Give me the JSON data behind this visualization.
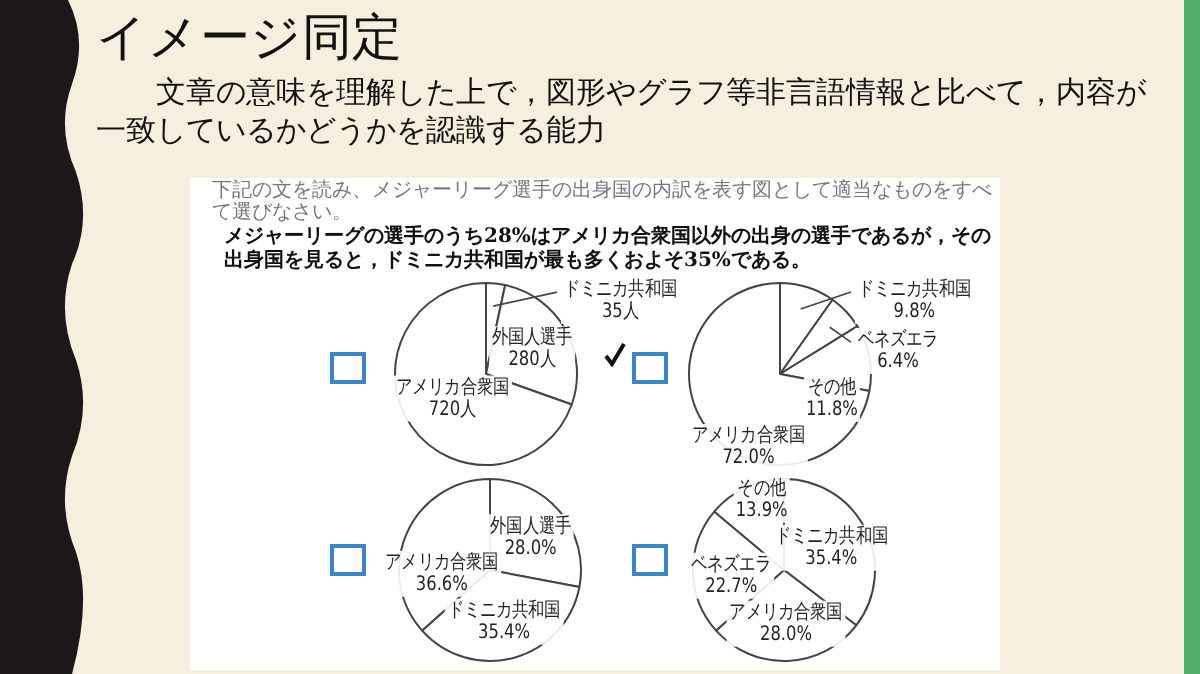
{
  "chart_data": [
    {
      "type": "other",
      "title": "イメージ同定",
      "subtitle": "文章の意味を理解した上で，図形やグラフ等非言語情報と比べて，内容が一致しているかどうかを認識する能力",
      "annotations": [
        "下記の文を読み、メジャーリーグ選手の出身国の内訳を表す図として適当なものをすべて選びなさい。",
        "メジャーリーグの選手のうち28%はアメリカ合衆国以外の出身の選手であるが，その出身国を見ると，ドミニカ共和国が最も多くおよそ35%である。"
      ]
    },
    {
      "type": "pie",
      "categories": [
        "ドミニカ共和国",
        "外国人選手",
        "アメリカ合衆国"
      ],
      "values": [
        35,
        280,
        720
      ],
      "value_labels": [
        "35人",
        "280人",
        "720人"
      ],
      "colors": [
        "#ffffff",
        "#ffffff",
        "#ffffff"
      ],
      "legend": false
    },
    {
      "type": "pie",
      "categories": [
        "ドミニカ共和国",
        "ベネズエラ",
        "その他",
        "アメリカ合衆国"
      ],
      "values": [
        9.8,
        6.4,
        11.8,
        72.0
      ],
      "value_labels": [
        "9.8%",
        "6.4%",
        "11.8%",
        "72.0%"
      ],
      "colors": [
        "#ffffff",
        "#ffffff",
        "#ffffff",
        "#ffffff"
      ],
      "legend": false
    },
    {
      "type": "pie",
      "categories": [
        "外国人選手",
        "ドミニカ共和国",
        "アメリカ合衆国"
      ],
      "values": [
        28.0,
        35.4,
        36.6
      ],
      "value_labels": [
        "28.0%",
        "35.4%",
        "36.6%"
      ],
      "colors": [
        "#ffffff",
        "#ffffff",
        "#ffffff"
      ],
      "legend": false
    },
    {
      "type": "pie",
      "categories": [
        "ドミニカ共和国",
        "アメリカ合衆国",
        "ベネズエラ",
        "その他"
      ],
      "values": [
        35.4,
        28.0,
        22.7,
        13.9
      ],
      "value_labels": [
        "35.4%",
        "28.0%",
        "22.7%",
        "13.9%"
      ],
      "colors": [
        "#ffffff",
        "#ffffff",
        "#ffffff",
        "#ffffff"
      ],
      "legend": false
    }
  ]
}
